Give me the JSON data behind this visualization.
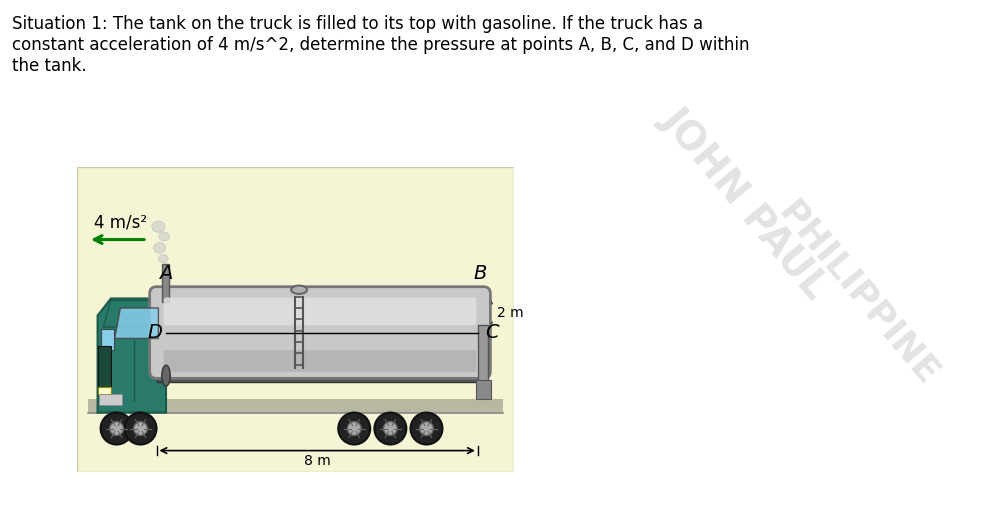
{
  "title_text": "Situation 1: The tank on the truck is filled to its top with gasoline. If the truck has a\nconstant acceleration of 4 m/s^2, determine the pressure at points A, B, C, and D within\nthe tank.",
  "title_fontsize": 12,
  "bg_color": "#ffffff",
  "diagram_bg": "#f5f5d5",
  "diagram_border": "#ccccaa",
  "cab_color": "#2a7a6a",
  "cab_dark": "#1a5a4a",
  "tank_main": "#c8c8c8",
  "tank_light": "#e0e0e0",
  "tank_dark": "#a0a0a0",
  "wheel_color": "#222222",
  "hub_color": "#aaaaaa",
  "chassis_color": "#555555",
  "road_color": "#b8b8a0",
  "smoke_color": "#cccccc",
  "arrow_color": "#008000",
  "watermark1": "JOHN PAUL",
  "watermark2": "PHILIPPINE",
  "wm_color": "#cccccc",
  "wm_alpha": 0.55
}
